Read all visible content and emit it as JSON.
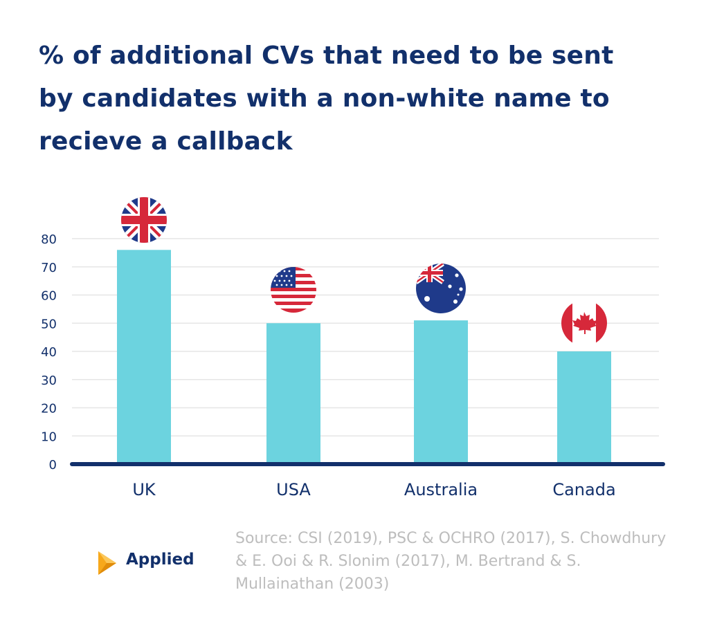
{
  "title_lines": [
    "% of additional CVs that need to be sent",
    "by candidates with a non-white name to",
    "recieve a callback"
  ],
  "chart_data": {
    "type": "bar",
    "title": "% of additional CVs that need to be sent by candidates with a non-white name to recieve a callback",
    "xlabel": "",
    "ylabel": "",
    "categories": [
      "UK",
      "USA",
      "Australia",
      "Canada"
    ],
    "values": [
      76,
      50,
      51,
      40
    ],
    "ylim": [
      0,
      80
    ],
    "yticks": [
      0,
      10,
      20,
      30,
      40,
      50,
      60,
      70,
      80
    ],
    "grid": true,
    "legend": "none",
    "bar_color": "#6cd3df",
    "axis_color": "#12306b"
  },
  "flags": [
    {
      "country": "UK",
      "icon": "uk-flag-icon"
    },
    {
      "country": "USA",
      "icon": "usa-flag-icon"
    },
    {
      "country": "Australia",
      "icon": "australia-flag-icon"
    },
    {
      "country": "Canada",
      "icon": "canada-flag-icon"
    }
  ],
  "logo": {
    "text": "Applied",
    "icon": "applied-logo-icon",
    "accent": "#f7a81b"
  },
  "source_lines": [
    "Source: CSI (2019), PSC & OCHRO (2017), S. Chowdhury",
    "& E. Ooi & R. Slonim (2017), M. Bertrand & S.",
    "Mullainathan (2003)"
  ]
}
